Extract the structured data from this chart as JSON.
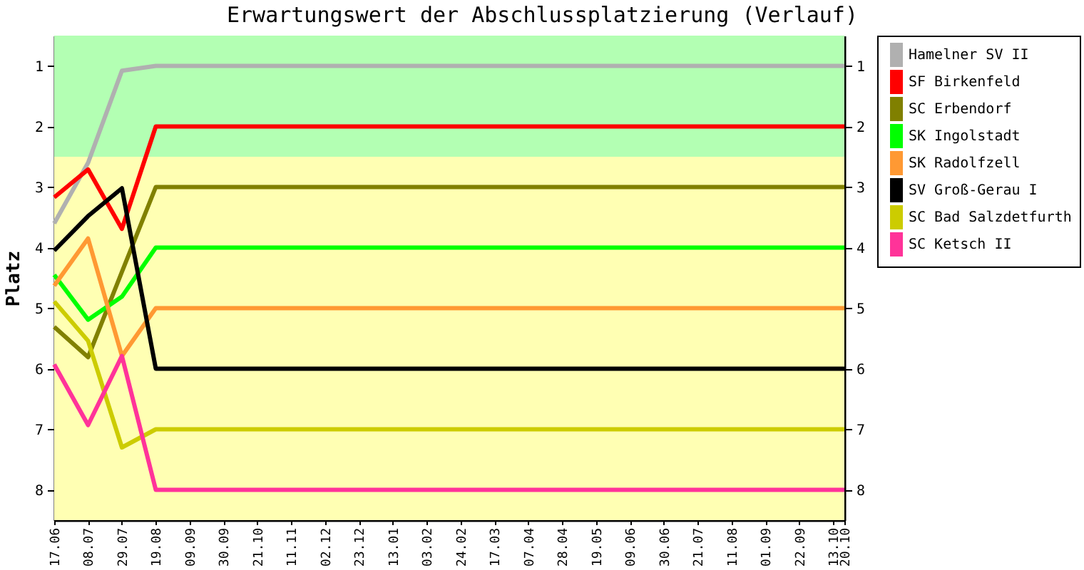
{
  "chart_data": {
    "type": "line",
    "title": "Erwartungswert der Abschlussplatzierung (Verlauf)",
    "ylabel": "Platz",
    "x": [
      "2012-06-17",
      "2012-07-08",
      "2012-07-29",
      "2012-08-19",
      "2012-09-09",
      "2012-09-30",
      "2012-10-21",
      "2012-11-11",
      "2012-12-02",
      "2012-12-23",
      "2013-01-13",
      "2013-02-03",
      "2013-02-24",
      "2013-03-17",
      "2013-04-07",
      "2013-04-28",
      "2013-05-19",
      "2013-06-09",
      "2013-06-30",
      "2013-07-21",
      "2013-08-11",
      "2013-09-01",
      "2013-09-22",
      "2013-10-13",
      "2013-10-20"
    ],
    "xlim": [
      "2012-06-17",
      "2013-10-20"
    ],
    "xticks": [
      {
        "value": "2012-06-17",
        "label": "17.06"
      },
      {
        "value": "2012-07-08",
        "label": "08.07"
      },
      {
        "value": "2012-07-29",
        "label": "29.07"
      },
      {
        "value": "2012-08-19",
        "label": "19.08"
      },
      {
        "value": "2012-09-09",
        "label": "09.09"
      },
      {
        "value": "2012-09-30",
        "label": "30.09"
      },
      {
        "value": "2012-10-21",
        "label": "21.10"
      },
      {
        "value": "2012-11-11",
        "label": "11.11"
      },
      {
        "value": "2012-12-02",
        "label": "02.12"
      },
      {
        "value": "2012-12-23",
        "label": "23.12"
      },
      {
        "value": "2013-01-13",
        "label": "13.01"
      },
      {
        "value": "2013-02-03",
        "label": "03.02"
      },
      {
        "value": "2013-02-24",
        "label": "24.02"
      },
      {
        "value": "2013-03-17",
        "label": "17.03"
      },
      {
        "value": "2013-04-07",
        "label": "07.04"
      },
      {
        "value": "2013-04-28",
        "label": "28.04"
      },
      {
        "value": "2013-05-19",
        "label": "19.05"
      },
      {
        "value": "2013-06-09",
        "label": "09.06"
      },
      {
        "value": "2013-06-30",
        "label": "30.06"
      },
      {
        "value": "2013-07-21",
        "label": "21.07"
      },
      {
        "value": "2013-08-11",
        "label": "11.08"
      },
      {
        "value": "2013-09-01",
        "label": "01.09"
      },
      {
        "value": "2013-09-22",
        "label": "22.09"
      },
      {
        "value": "2013-10-13",
        "label": "13.10"
      },
      {
        "value": "2013-10-20",
        "label": "20.10"
      }
    ],
    "ylim": [
      8.5,
      0.5
    ],
    "yticks": [
      1,
      2,
      3,
      4,
      5,
      6,
      7,
      8
    ],
    "y2lim": [
      8.5,
      0.5
    ],
    "y2ticks": [
      1,
      2,
      3,
      4,
      5,
      6,
      7,
      8
    ],
    "bands": [
      {
        "axis": "y",
        "from": 0.5,
        "to": 2.5,
        "color": "#b3ffb3"
      },
      {
        "axis": "y",
        "from": 2.5,
        "to": 8.5,
        "color": "#ffffb3"
      }
    ],
    "legend": "right",
    "series": [
      {
        "name": "Hamelner SV II",
        "color": "#b0b0b0",
        "values": [
          3.6,
          2.6,
          1.08,
          1,
          1,
          1,
          1,
          1,
          1,
          1,
          1,
          1,
          1,
          1,
          1,
          1,
          1,
          1,
          1,
          1,
          1,
          1,
          1,
          1,
          1
        ]
      },
      {
        "name": "SF Birkenfeld",
        "color": "#ff0000",
        "values": [
          3.17,
          2.71,
          3.69,
          2,
          2,
          2,
          2,
          2,
          2,
          2,
          2,
          2,
          2,
          2,
          2,
          2,
          2,
          2,
          2,
          2,
          2,
          2,
          2,
          2,
          2
        ]
      },
      {
        "name": "SC Erbendorf",
        "color": "#808000",
        "values": [
          5.31,
          5.81,
          4.4,
          3,
          3,
          3,
          3,
          3,
          3,
          3,
          3,
          3,
          3,
          3,
          3,
          3,
          3,
          3,
          3,
          3,
          3,
          3,
          3,
          3,
          3
        ]
      },
      {
        "name": "SK Ingolstadt",
        "color": "#00ff00",
        "values": [
          4.45,
          5.19,
          4.81,
          4,
          4,
          4,
          4,
          4,
          4,
          4,
          4,
          4,
          4,
          4,
          4,
          4,
          4,
          4,
          4,
          4,
          4,
          4,
          4,
          4,
          4
        ]
      },
      {
        "name": "SK Radolfzell",
        "color": "#ff9933",
        "values": [
          4.63,
          3.85,
          5.79,
          5,
          5,
          5,
          5,
          5,
          5,
          5,
          5,
          5,
          5,
          5,
          5,
          5,
          5,
          5,
          5,
          5,
          5,
          5,
          5,
          5,
          5
        ]
      },
      {
        "name": "SV Groß-Gerau I",
        "color": "#000000",
        "values": [
          4.05,
          3.48,
          3.02,
          6,
          6,
          6,
          6,
          6,
          6,
          6,
          6,
          6,
          6,
          6,
          6,
          6,
          6,
          6,
          6,
          6,
          6,
          6,
          6,
          6,
          6
        ]
      },
      {
        "name": "SC Bad Salzdetfurth",
        "color": "#cccc00",
        "values": [
          4.89,
          5.54,
          7.3,
          7,
          7,
          7,
          7,
          7,
          7,
          7,
          7,
          7,
          7,
          7,
          7,
          7,
          7,
          7,
          7,
          7,
          7,
          7,
          7,
          7,
          7
        ]
      },
      {
        "name": "SC Ketsch II",
        "color": "#ff3399",
        "values": [
          5.93,
          6.93,
          5.79,
          8,
          8,
          8,
          8,
          8,
          8,
          8,
          8,
          8,
          8,
          8,
          8,
          8,
          8,
          8,
          8,
          8,
          8,
          8,
          8,
          8,
          8
        ]
      }
    ]
  }
}
